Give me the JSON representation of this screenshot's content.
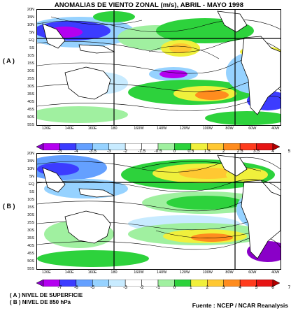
{
  "title": "ANOMALIAS DE VIENTO ZONAL (m/s), ABRIL - MAYO 1998",
  "panels": [
    {
      "label": "( A )",
      "latitudes": [
        "20N",
        "15N",
        "10N",
        "5N",
        "EQ",
        "5S",
        "10S",
        "15S",
        "20S",
        "25S",
        "30S",
        "35S",
        "40S",
        "45S",
        "50S",
        "55S"
      ],
      "longitudes": [
        "120E",
        "140E",
        "160E",
        "180",
        "160W",
        "140W",
        "120W",
        "100W",
        "80W",
        "60W",
        "40W"
      ],
      "colorbar": {
        "ticks": [
          "-5",
          "-4",
          "-3.5",
          "-3",
          "-2",
          "-1.5",
          "-0.5",
          "0",
          "0.5",
          "1.5",
          "2",
          "2.5",
          "3.5",
          "4",
          "5"
        ],
        "colors": [
          "#8a00c8",
          "#b400f0",
          "#3c3cff",
          "#64a0ff",
          "#96d2ff",
          "#c8ebff",
          "#ffffff",
          "#ffffff",
          "#a0f0a0",
          "#2dd23c",
          "#f0f03c",
          "#ffc832",
          "#ff8c1e",
          "#ff3c1e",
          "#e61414",
          "#b40000"
        ]
      }
    },
    {
      "label": "( B )",
      "latitudes": [
        "20N",
        "15N",
        "10N",
        "5N",
        "EQ",
        "5S",
        "10S",
        "15S",
        "20S",
        "25S",
        "30S",
        "35S",
        "40S",
        "45S",
        "50S",
        "55S"
      ],
      "longitudes": [
        "120E",
        "140E",
        "160E",
        "180",
        "160W",
        "140W",
        "120W",
        "100W",
        "80W",
        "60W",
        "40W"
      ],
      "colorbar": {
        "ticks": [
          "-7",
          "-6",
          "-5",
          "-4",
          "-3",
          "-2",
          "-1",
          "0",
          "1",
          "2",
          "3",
          "4",
          "5",
          "6",
          "7"
        ],
        "colors": [
          "#8a00c8",
          "#b400f0",
          "#3c3cff",
          "#64a0ff",
          "#96d2ff",
          "#c8ebff",
          "#ffffff",
          "#ffffff",
          "#a0f0a0",
          "#2dd23c",
          "#f0f03c",
          "#ffc832",
          "#ff8c1e",
          "#ff3c1e",
          "#e61414",
          "#b40000"
        ]
      }
    }
  ],
  "legend": {
    "line_a": "( A ) NIVEL DE SUPERFICIE",
    "line_b": "( B ) NIVEL DE 850 hPa"
  },
  "source": "Fuente : NCEP / NCAR Reanalysis"
}
